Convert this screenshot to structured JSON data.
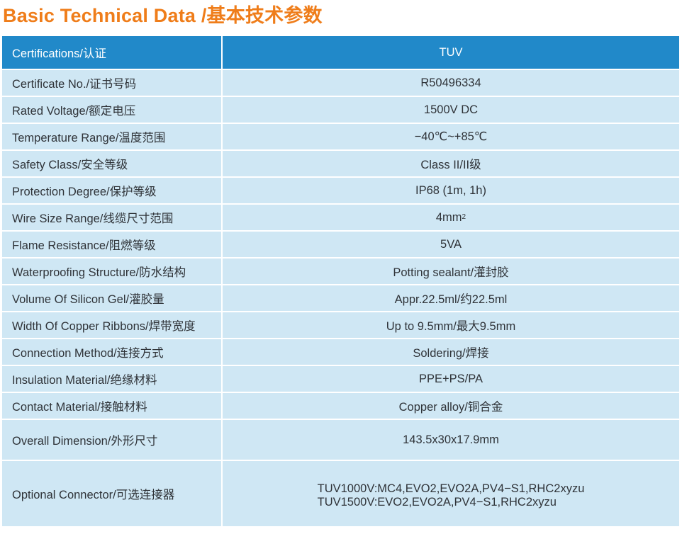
{
  "title": "Basic Technical Data /基本技术参数",
  "colors": {
    "title": "#ef7d1a",
    "header_bg": "#2189c9",
    "header_text": "#ffffff",
    "row_bg": "#cfe7f4",
    "row_text": "#2f3338"
  },
  "header": {
    "label": "Certifications/认证",
    "value": "TUV"
  },
  "rows": [
    {
      "label": "Certificate No./证书号码",
      "value": "R50496334"
    },
    {
      "label": "Rated Voltage/额定电压",
      "value": "1500V DC"
    },
    {
      "label": "Temperature Range/温度范围",
      "value": "−40℃~+85℃"
    },
    {
      "label": "Safety Class/安全等级",
      "value": "Class II/II级"
    },
    {
      "label": "Protection Degree/保护等级",
      "value": "IP68 (1m, 1h)"
    },
    {
      "label": "Wire Size Range/线缆尺寸范围",
      "value": "4mm",
      "value_sup": "2"
    },
    {
      "label": "Flame Resistance/阻燃等级",
      "value": "5VA"
    },
    {
      "label": "Waterproofing Structure/防水结构",
      "value": "Potting sealant/灌封胶"
    },
    {
      "label": "Volume Of Silicon Gel/灌胶量",
      "value": "Appr.22.5ml/约22.5ml"
    },
    {
      "label": "Width Of Copper Ribbons/焊带宽度",
      "value": "Up to 9.5mm/最大9.5mm"
    },
    {
      "label": "Connection Method/连接方式",
      "value": "Soldering/焊接"
    },
    {
      "label": "Insulation Material/绝缘材料",
      "value": "PPE+PS/PA"
    },
    {
      "label": "Contact Material/接触材料",
      "value": "Copper alloy/铜合金"
    },
    {
      "label": "Overall Dimension/外形尺寸",
      "value": "143.5x30x17.9mm"
    }
  ],
  "optional_connector": {
    "label": "Optional Connector/可选连接器",
    "lines": [
      "TUV1000V:MC4,EVO2,EVO2A,PV4−S1,RHC2xyzu",
      "TUV1500V:EVO2,EVO2A,PV4−S1,RHC2xyzu"
    ]
  }
}
